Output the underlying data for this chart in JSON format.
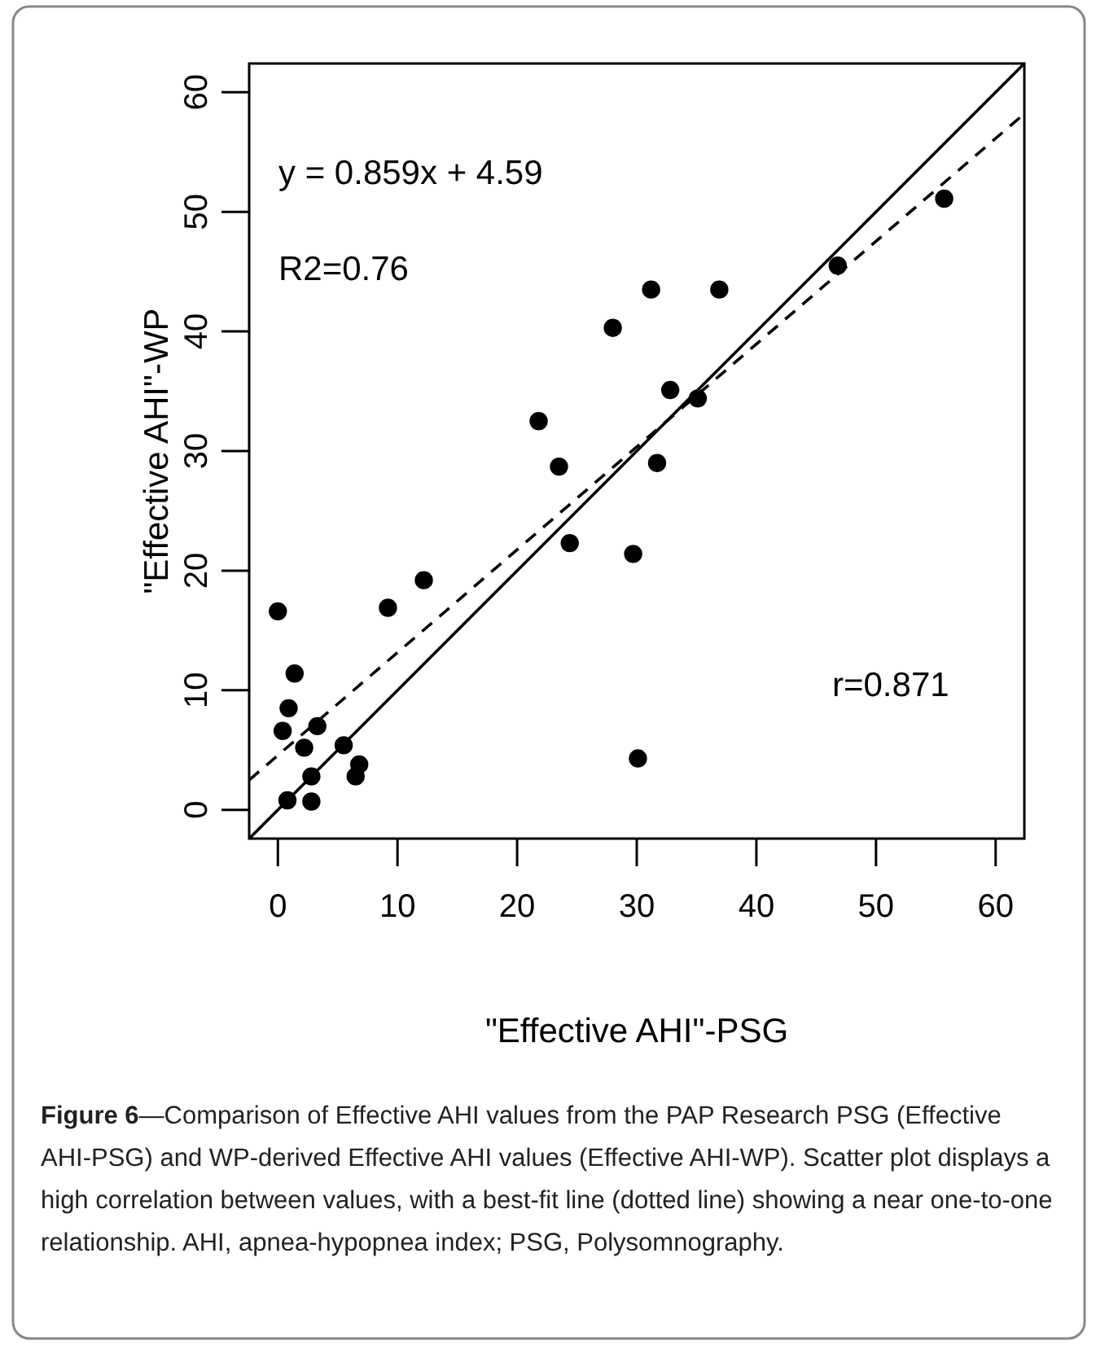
{
  "chart_data": {
    "type": "scatter",
    "xlabel": "\"Effective AHI\"-PSG",
    "ylabel": "\"Effective AHI\"-WP",
    "xlim": [
      -2.4,
      62.4
    ],
    "ylim": [
      -2.4,
      62.4
    ],
    "xticks": [
      0,
      10,
      20,
      30,
      40,
      50,
      60
    ],
    "yticks": [
      0,
      10,
      20,
      30,
      40,
      50,
      60
    ],
    "grid": false,
    "series": [
      {
        "color": "#000000",
        "marker": "circle",
        "x": [
          0,
          1.4,
          0.9,
          0.4,
          3.3,
          2.2,
          2.8,
          0.8,
          2.8,
          5.5,
          6.8,
          6.5,
          9.2,
          12.2,
          24.4,
          29.7,
          30.1,
          23.5,
          31.7,
          21.8,
          32.8,
          35.1,
          28.0,
          31.2,
          36.9,
          46.8,
          55.7
        ],
        "values": [
          16.6,
          11.4,
          8.5,
          6.6,
          7.0,
          5.2,
          2.8,
          0.8,
          0.7,
          5.4,
          3.8,
          2.8,
          16.9,
          19.2,
          22.3,
          21.4,
          4.3,
          28.7,
          29.0,
          32.5,
          35.1,
          34.4,
          40.3,
          43.5,
          43.5,
          45.5,
          51.1
        ]
      },
      {
        "type": "line",
        "color": "#000000",
        "line_style": "solid",
        "marker": "none",
        "x": [
          -2.4,
          62.4
        ],
        "values": [
          -2.4,
          62.4
        ]
      },
      {
        "type": "line",
        "color": "#000000",
        "line_style": "dashed",
        "marker": "none",
        "x": [
          -2.4,
          62.4
        ],
        "values": [
          2.5,
          58.2
        ]
      }
    ],
    "annotations": [
      "y = 0.859x + 4.59",
      "R2=0.76",
      "r=0.871",
      "Figure 6—Comparison of Effective AHI values from the PAP Research PSG (Effective AHI-PSG) and WP-derived Effective AHI values (Effective AHI-WP). Scatter plot displays a high correlation between values, with a best-fit line (dotted line) showing a near one-to-one relationship. AHI, apnea-hypopnea index; PSG, Polysomnography."
    ]
  }
}
